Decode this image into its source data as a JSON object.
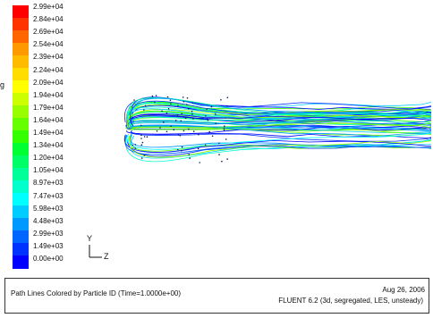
{
  "colorbar": {
    "labels": [
      "2.99e+04",
      "2.84e+04",
      "2.69e+04",
      "2.54e+04",
      "2.39e+04",
      "2.24e+04",
      "2.09e+04",
      "1.94e+04",
      "1.79e+04",
      "1.64e+04",
      "1.49e+04",
      "1.34e+04",
      "1.20e+04",
      "1.05e+04",
      "8.97e+03",
      "7.47e+03",
      "5.98e+03",
      "4.48e+03",
      "2.99e+03",
      "1.49e+03",
      "0.00e+00"
    ],
    "colors": [
      "#ff0000",
      "#ff3300",
      "#ff6600",
      "#ff9900",
      "#ffbb00",
      "#ffdd00",
      "#ffff00",
      "#ccff00",
      "#99ff00",
      "#66ff00",
      "#33ff00",
      "#00ff33",
      "#00ff66",
      "#00ff99",
      "#00ffcc",
      "#00ffff",
      "#00ccff",
      "#0099ff",
      "#0066ff",
      "#0033ff",
      "#0000ff"
    ]
  },
  "stray_text": "g",
  "axes": {
    "y": "Y",
    "z": "Z"
  },
  "footer": {
    "caption": "Path Lines Colored by Particle ID  (Time=1.0000e+00)",
    "date": "Aug 26, 2006",
    "solver": "FLUENT 6.2 (3d, segregated, LES, unsteady)"
  }
}
